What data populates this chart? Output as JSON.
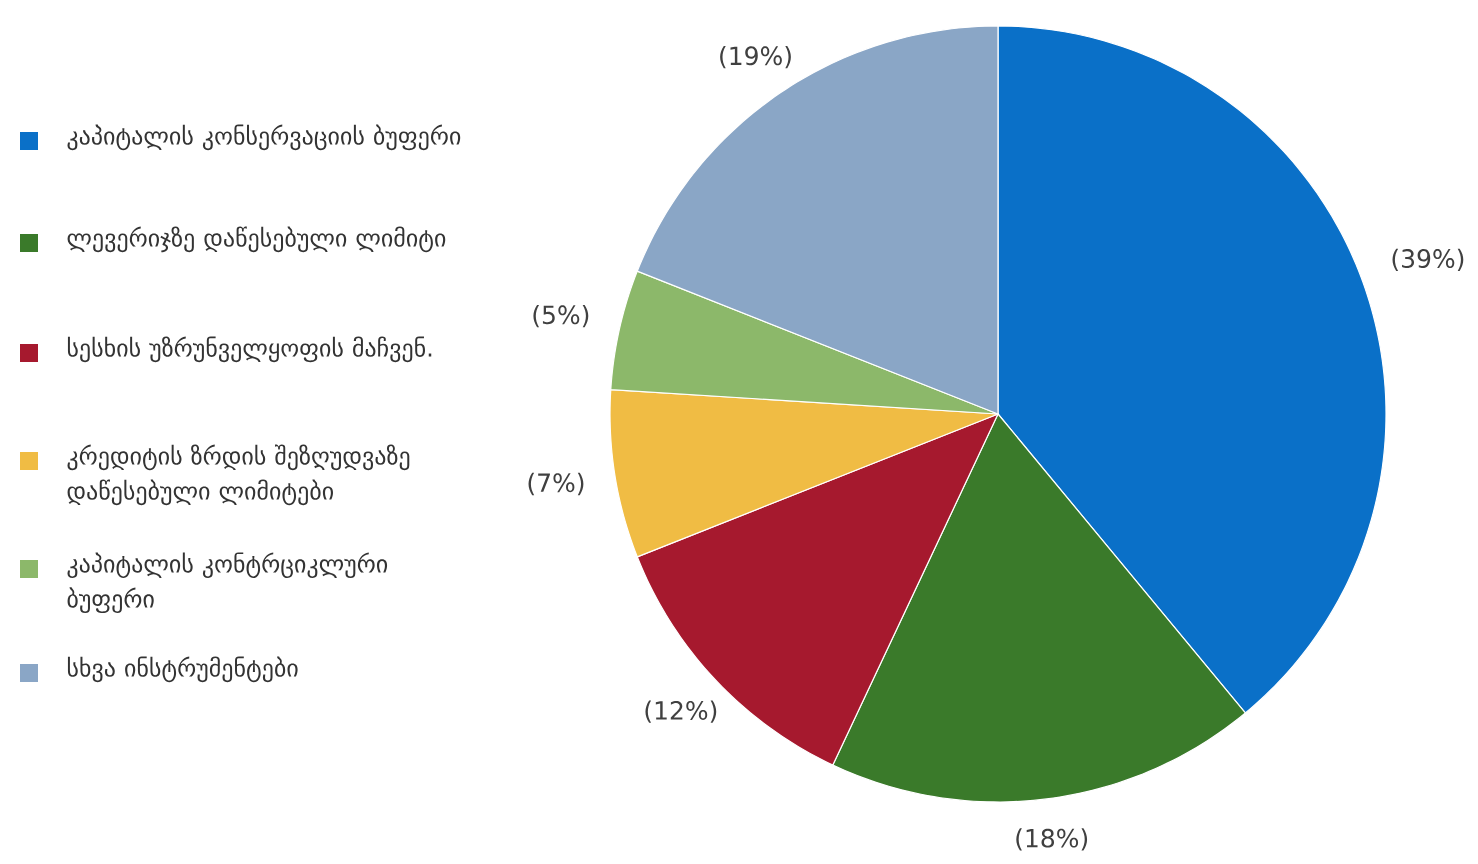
{
  "chart_data": {
    "type": "pie",
    "categories": [
      "კაპიტალის კონსერვაციის ბუფერი",
      "ლევერიჯზე დაწესებული ლიმიტი",
      "სესხის უზრუნველყოფის მაჩვენ.",
      "კრედიტის ზრდის შეზღუდვაზე დაწესებული ლიმიტები",
      "კაპიტალის კონტრციკლური ბუფერი",
      "სხვა ინსტრუმენტები"
    ],
    "values": [
      39,
      18,
      12,
      7,
      5,
      19
    ],
    "value_labels": [
      "(39%)",
      "(18%)",
      "(12%)",
      "(7%)",
      "(5%)",
      "(19%)"
    ],
    "colors": [
      "#0a70c8",
      "#3a7a2a",
      "#a6192e",
      "#f0bc44",
      "#8cb86a",
      "#8aa6c6"
    ],
    "legend": "left"
  }
}
